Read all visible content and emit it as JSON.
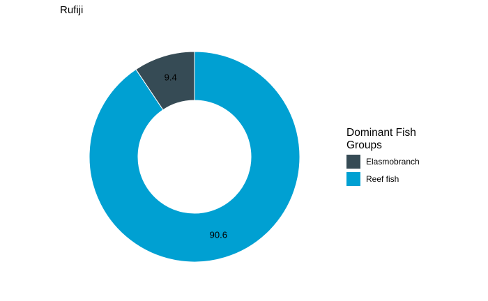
{
  "chart_data": {
    "type": "pie",
    "variant": "donut",
    "title": "Rufiji",
    "legend_title": "Dominant Fish Groups",
    "legend_position": "right",
    "slices": [
      {
        "label": "Elasmobranch",
        "value": 9.4,
        "color": "#364b55"
      },
      {
        "label": "Reef fish",
        "value": 90.6,
        "color": "#00a0d2"
      }
    ]
  }
}
